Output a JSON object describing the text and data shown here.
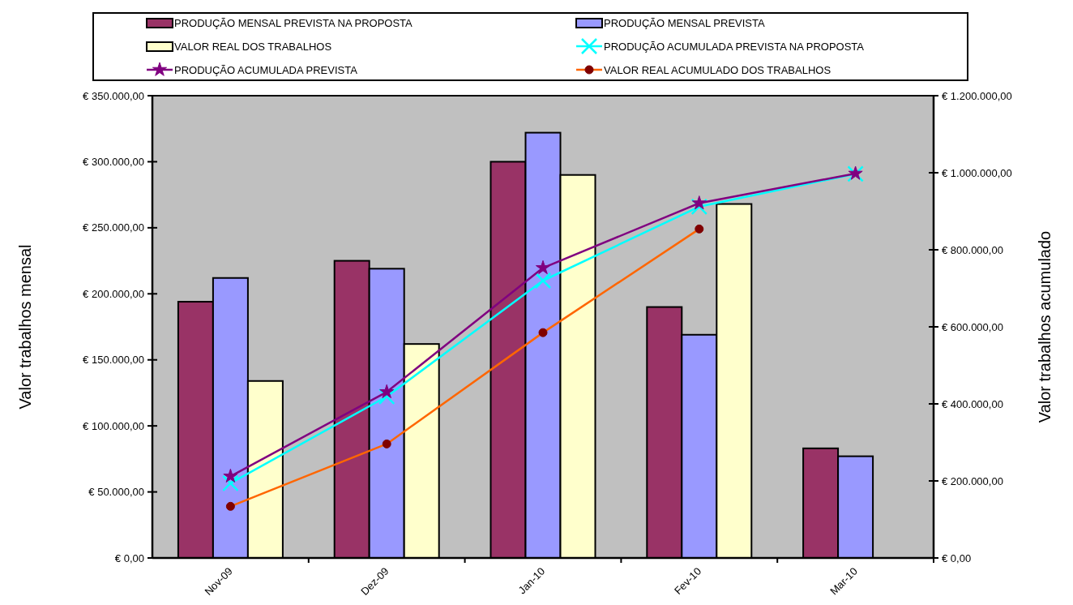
{
  "chart_data": {
    "type": "bar",
    "ylabel": "Valor trabalhos mensal",
    "y2label": "Valor trabalhos acumulado",
    "categories": [
      "Nov-09",
      "Dez-09",
      "Jan-10",
      "Fev-10",
      "Mar-10"
    ],
    "series": [
      {
        "name": "PRODUÇÃO MENSAL PREVISTA NA PROPOSTA",
        "color": "#993366",
        "values": [
          194000,
          225000,
          300000,
          190000,
          83000
        ]
      },
      {
        "name": "PRODUÇÃO MENSAL PREVISTA",
        "color": "#9999ff",
        "values": [
          212000,
          219000,
          322000,
          169000,
          77000
        ]
      },
      {
        "name": "VALOR REAL DOS TRABALHOS",
        "color": "#ffffcc",
        "values": [
          134000,
          162000,
          290000,
          268000,
          null
        ]
      },
      {
        "name": "PRODUÇÃO ACUMULADA PREVISTA NA PROPOSTA",
        "type": "line",
        "axis": "y2",
        "marker": "cross",
        "color": "#00ffff",
        "values": [
          194000,
          419000,
          720000,
          912000,
          997000
        ]
      },
      {
        "name": "PRODUÇÃO ACUMULADA PREVISTA",
        "type": "line",
        "axis": "y2",
        "marker": "star",
        "color": "#800080",
        "values": [
          212000,
          431000,
          753000,
          921000,
          998000
        ]
      },
      {
        "name": "VALOR REAL ACUMULADO DOS TRABALHOS",
        "type": "line",
        "axis": "y2",
        "marker": "circle",
        "color": "#ff6600",
        "values": [
          134000,
          296000,
          585000,
          854000,
          null
        ]
      }
    ],
    "ylim": [
      0,
      350000
    ],
    "yticks": [
      {
        "value": 0,
        "label": "€ 0,00"
      },
      {
        "value": 50000,
        "label": "€ 50.000,00"
      },
      {
        "value": 100000,
        "label": "€ 100.000,00"
      },
      {
        "value": 150000,
        "label": "€ 150.000,00"
      },
      {
        "value": 200000,
        "label": "€ 200.000,00"
      },
      {
        "value": 250000,
        "label": "€ 250.000,00"
      },
      {
        "value": 300000,
        "label": "€ 300.000,00"
      },
      {
        "value": 350000,
        "label": "€ 350.000,00"
      }
    ],
    "y2lim": [
      0,
      1200000
    ],
    "y2ticks": [
      {
        "value": 0,
        "label": "€ 0,00"
      },
      {
        "value": 200000,
        "label": "€ 200.000,00"
      },
      {
        "value": 400000,
        "label": "€ 400.000,00"
      },
      {
        "value": 600000,
        "label": "€ 600.000,00"
      },
      {
        "value": 800000,
        "label": "€ 800.000,00"
      },
      {
        "value": 1000000,
        "label": "€ 1.000.000,00"
      },
      {
        "value": 1200000,
        "label": "€ 1.200.000,00"
      }
    ],
    "grid": false,
    "legend": "top"
  }
}
